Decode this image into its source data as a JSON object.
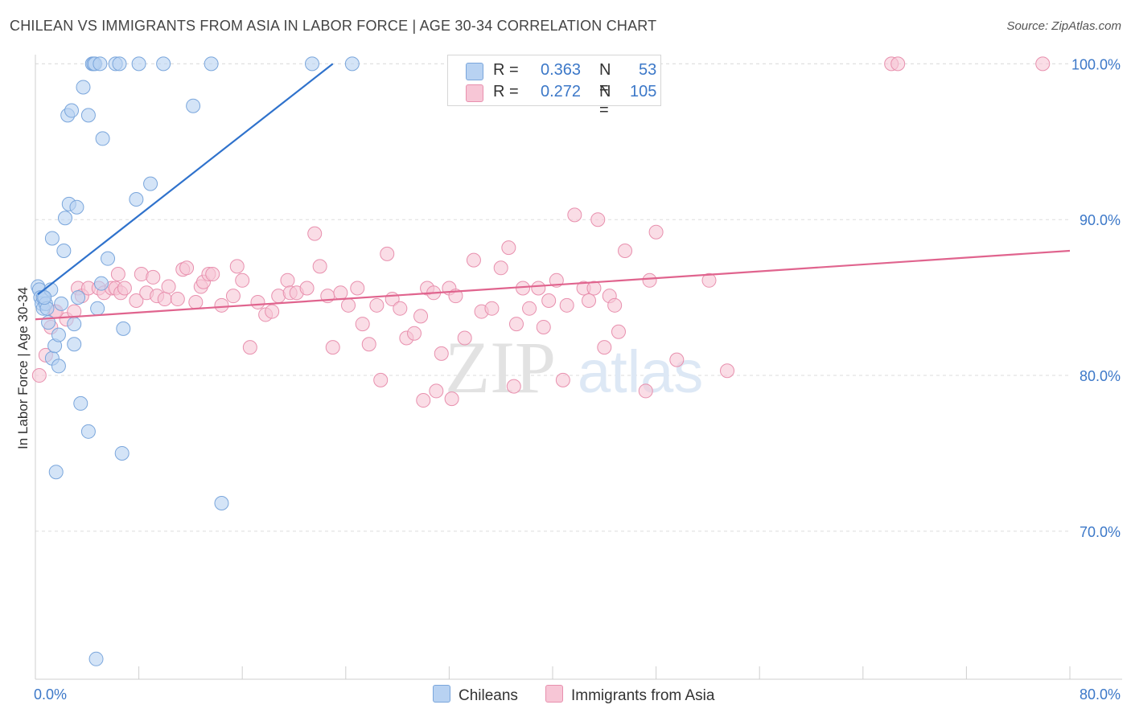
{
  "header": {
    "title": "CHILEAN VS IMMIGRANTS FROM ASIA IN LABOR FORCE | AGE 30-34 CORRELATION CHART",
    "source": "Source: ZipAtlas.com"
  },
  "watermark": {
    "zip": "ZIP",
    "atlas": "atlas"
  },
  "legend": {
    "r_label": "R =",
    "n_label": "N =",
    "series": [
      {
        "name": "Chileans",
        "r": "0.363",
        "n": "53"
      },
      {
        "name": "Immigrants from Asia",
        "r": "0.272",
        "n": "105"
      }
    ]
  },
  "colors": {
    "blue_fill": "#b8d2f2",
    "blue_stroke": "#7aa6dc",
    "blue_line": "#2f72cc",
    "pink_fill": "#f7c6d6",
    "pink_stroke": "#e890ae",
    "pink_line": "#e0648e",
    "tick_text": "#3c78c8",
    "grid": "#dedede"
  },
  "chart_data": {
    "type": "scatter",
    "title": "CHILEAN VS IMMIGRANTS FROM ASIA IN LABOR FORCE | AGE 30-34 CORRELATION CHART",
    "xlabel": "",
    "ylabel": "In Labor Force | Age 30-34",
    "xlim": [
      0,
      80
    ],
    "ylim": [
      60.5,
      101
    ],
    "x_tick_labels": [
      {
        "value": 0,
        "label": "0.0%"
      },
      {
        "value": 80,
        "label": "80.0%"
      }
    ],
    "y_tick_labels": [
      {
        "value": 100,
        "label": "100.0%"
      },
      {
        "value": 90,
        "label": "90.0%"
      },
      {
        "value": 80,
        "label": "80.0%"
      },
      {
        "value": 70,
        "label": "70.0%"
      }
    ],
    "grid": true,
    "legend_position": "top-center",
    "series": [
      {
        "name": "Chileans",
        "color": "#b8d2f2",
        "trend": {
          "x": [
            0.2,
            23
          ],
          "y": [
            85.2,
            100
          ]
        },
        "points": [
          [
            0.2,
            85.7
          ],
          [
            0.3,
            85.5
          ],
          [
            0.4,
            85.0
          ],
          [
            0.5,
            84.6
          ],
          [
            0.6,
            84.3
          ],
          [
            0.6,
            85.0
          ],
          [
            0.8,
            84.6
          ],
          [
            0.9,
            84.3
          ],
          [
            1.0,
            83.4
          ],
          [
            1.2,
            85.5
          ],
          [
            1.3,
            88.8
          ],
          [
            1.3,
            81.1
          ],
          [
            1.5,
            81.9
          ],
          [
            1.6,
            73.8
          ],
          [
            1.8,
            80.6
          ],
          [
            1.8,
            82.6
          ],
          [
            2.0,
            84.6
          ],
          [
            2.2,
            88.0
          ],
          [
            2.3,
            90.1
          ],
          [
            2.5,
            96.7
          ],
          [
            2.6,
            91.0
          ],
          [
            2.8,
            97.0
          ],
          [
            3.0,
            83.3
          ],
          [
            3.0,
            82.0
          ],
          [
            3.2,
            90.8
          ],
          [
            3.3,
            85.0
          ],
          [
            3.5,
            78.2
          ],
          [
            3.7,
            98.5
          ],
          [
            4.1,
            96.7
          ],
          [
            4.1,
            76.4
          ],
          [
            4.4,
            100.0
          ],
          [
            4.5,
            100.0
          ],
          [
            4.6,
            100.0
          ],
          [
            4.8,
            84.3
          ],
          [
            5.0,
            100.0
          ],
          [
            5.1,
            85.9
          ],
          [
            5.2,
            95.2
          ],
          [
            5.6,
            87.5
          ],
          [
            6.2,
            100.0
          ],
          [
            6.5,
            100.0
          ],
          [
            6.7,
            75.0
          ],
          [
            6.8,
            83.0
          ],
          [
            7.8,
            91.3
          ],
          [
            8.0,
            100.0
          ],
          [
            8.9,
            92.3
          ],
          [
            9.9,
            100.0
          ],
          [
            12.2,
            97.3
          ],
          [
            13.6,
            100.0
          ],
          [
            14.4,
            71.8
          ],
          [
            21.4,
            100.0
          ],
          [
            24.5,
            100.0
          ],
          [
            4.7,
            61.8
          ],
          [
            0.7,
            85.0
          ]
        ]
      },
      {
        "name": "Immigrants from Asia",
        "color": "#f7c6d6",
        "trend": {
          "x": [
            0,
            80
          ],
          "y": [
            83.6,
            88.0
          ]
        },
        "points": [
          [
            0.3,
            80.0
          ],
          [
            0.8,
            81.3
          ],
          [
            1.2,
            83.1
          ],
          [
            1.5,
            84.1
          ],
          [
            2.4,
            83.6
          ],
          [
            3.0,
            84.1
          ],
          [
            3.3,
            85.6
          ],
          [
            3.6,
            85.1
          ],
          [
            4.1,
            85.6
          ],
          [
            4.9,
            85.6
          ],
          [
            5.3,
            85.3
          ],
          [
            5.9,
            85.6
          ],
          [
            6.2,
            85.6
          ],
          [
            6.4,
            86.5
          ],
          [
            6.6,
            85.3
          ],
          [
            6.9,
            85.6
          ],
          [
            7.8,
            84.8
          ],
          [
            8.2,
            86.5
          ],
          [
            8.6,
            85.3
          ],
          [
            9.1,
            86.3
          ],
          [
            9.4,
            85.1
          ],
          [
            10.0,
            84.9
          ],
          [
            10.3,
            85.7
          ],
          [
            11.0,
            84.9
          ],
          [
            11.4,
            86.8
          ],
          [
            11.7,
            86.9
          ],
          [
            12.4,
            84.7
          ],
          [
            12.8,
            85.7
          ],
          [
            13.0,
            86.0
          ],
          [
            13.4,
            86.5
          ],
          [
            13.7,
            86.5
          ],
          [
            14.4,
            84.5
          ],
          [
            15.3,
            85.1
          ],
          [
            15.6,
            87.0
          ],
          [
            16.0,
            86.1
          ],
          [
            16.6,
            81.8
          ],
          [
            17.2,
            84.7
          ],
          [
            17.8,
            83.9
          ],
          [
            18.3,
            84.1
          ],
          [
            18.8,
            85.1
          ],
          [
            19.5,
            86.1
          ],
          [
            19.7,
            85.3
          ],
          [
            20.2,
            85.3
          ],
          [
            21.0,
            85.6
          ],
          [
            21.6,
            89.1
          ],
          [
            22.0,
            87.0
          ],
          [
            22.6,
            85.1
          ],
          [
            23.0,
            81.8
          ],
          [
            23.6,
            85.3
          ],
          [
            24.2,
            84.5
          ],
          [
            24.9,
            85.6
          ],
          [
            25.3,
            83.3
          ],
          [
            25.8,
            82.0
          ],
          [
            26.4,
            84.5
          ],
          [
            27.2,
            87.8
          ],
          [
            27.6,
            84.9
          ],
          [
            28.2,
            84.3
          ],
          [
            28.7,
            82.4
          ],
          [
            29.3,
            82.7
          ],
          [
            29.8,
            83.8
          ],
          [
            30.3,
            85.6
          ],
          [
            30.8,
            85.3
          ],
          [
            31.4,
            81.4
          ],
          [
            32.0,
            85.6
          ],
          [
            32.5,
            85.1
          ],
          [
            33.2,
            82.4
          ],
          [
            33.9,
            87.4
          ],
          [
            34.5,
            84.1
          ],
          [
            35.3,
            84.3
          ],
          [
            36.0,
            86.9
          ],
          [
            36.6,
            88.2
          ],
          [
            37.2,
            83.3
          ],
          [
            37.7,
            85.6
          ],
          [
            38.2,
            84.3
          ],
          [
            38.9,
            85.6
          ],
          [
            39.3,
            83.1
          ],
          [
            39.7,
            84.8
          ],
          [
            40.3,
            86.1
          ],
          [
            41.1,
            84.5
          ],
          [
            41.7,
            90.3
          ],
          [
            42.4,
            85.6
          ],
          [
            42.8,
            84.8
          ],
          [
            43.2,
            85.6
          ],
          [
            43.5,
            90.0
          ],
          [
            44.0,
            81.8
          ],
          [
            44.4,
            85.1
          ],
          [
            44.8,
            84.5
          ],
          [
            45.1,
            82.8
          ],
          [
            45.6,
            88.0
          ],
          [
            47.2,
            79.0
          ],
          [
            47.5,
            86.1
          ],
          [
            48.0,
            89.2
          ],
          [
            49.6,
            81.0
          ],
          [
            52.1,
            86.1
          ],
          [
            53.5,
            80.3
          ],
          [
            66.2,
            100.0
          ],
          [
            66.7,
            100.0
          ],
          [
            77.9,
            100.0
          ],
          [
            31.0,
            79.0
          ],
          [
            32.2,
            78.5
          ],
          [
            37.0,
            79.3
          ],
          [
            40.8,
            79.7
          ],
          [
            26.7,
            79.7
          ],
          [
            30.0,
            78.4
          ],
          [
            1.6,
            84.1
          ]
        ]
      }
    ]
  }
}
